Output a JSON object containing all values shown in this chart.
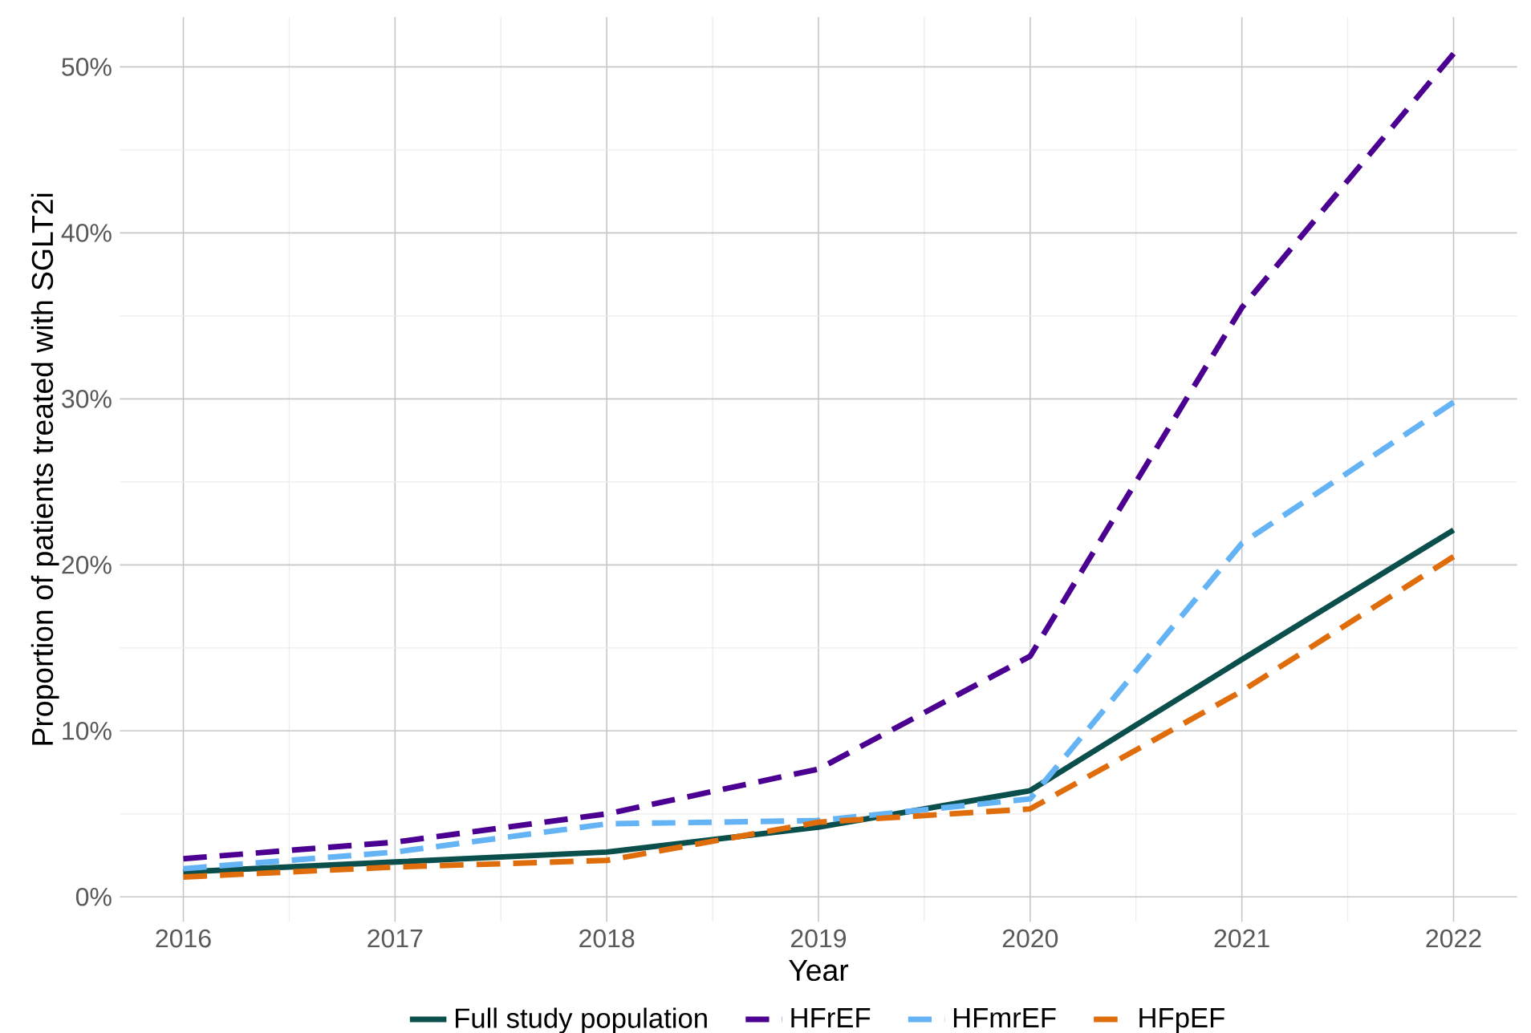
{
  "chart_data": {
    "type": "line",
    "xlabel": "Year",
    "ylabel": "Proportion of patients treated with SGLT2i",
    "x": [
      2016,
      2017,
      2018,
      2019,
      2020,
      2021,
      2022
    ],
    "series": [
      {
        "name": "Full study population",
        "color": "#0b4f4c",
        "line_style": "solid",
        "values": [
          1.5,
          2.1,
          2.7,
          4.2,
          6.4,
          14.3,
          22.1
        ]
      },
      {
        "name": "HFrEF",
        "color": "#4b0092",
        "line_style": "dashed",
        "values": [
          2.3,
          3.3,
          5.0,
          7.7,
          14.5,
          35.5,
          50.8
        ]
      },
      {
        "name": "HFmrEF",
        "color": "#63b3f5",
        "line_style": "dashed",
        "values": [
          1.7,
          2.7,
          4.4,
          4.6,
          5.9,
          21.3,
          29.8
        ]
      },
      {
        "name": "HFpEF",
        "color": "#df6d0c",
        "line_style": "dashed",
        "values": [
          1.2,
          1.8,
          2.2,
          4.5,
          5.3,
          12.4,
          20.5
        ]
      }
    ],
    "xlim": [
      2015.7,
      2022.3
    ],
    "ylim": [
      -1.5,
      53
    ],
    "xticks": [
      2016,
      2017,
      2018,
      2019,
      2020,
      2021,
      2022
    ],
    "yticks": [
      {
        "value": 0,
        "label": "0%"
      },
      {
        "value": 10,
        "label": "10%"
      },
      {
        "value": 20,
        "label": "20%"
      },
      {
        "value": 30,
        "label": "30%"
      },
      {
        "value": 40,
        "label": "40%"
      },
      {
        "value": 50,
        "label": "50%"
      }
    ],
    "grid": true,
    "legend": "bottom",
    "marker": "none"
  }
}
